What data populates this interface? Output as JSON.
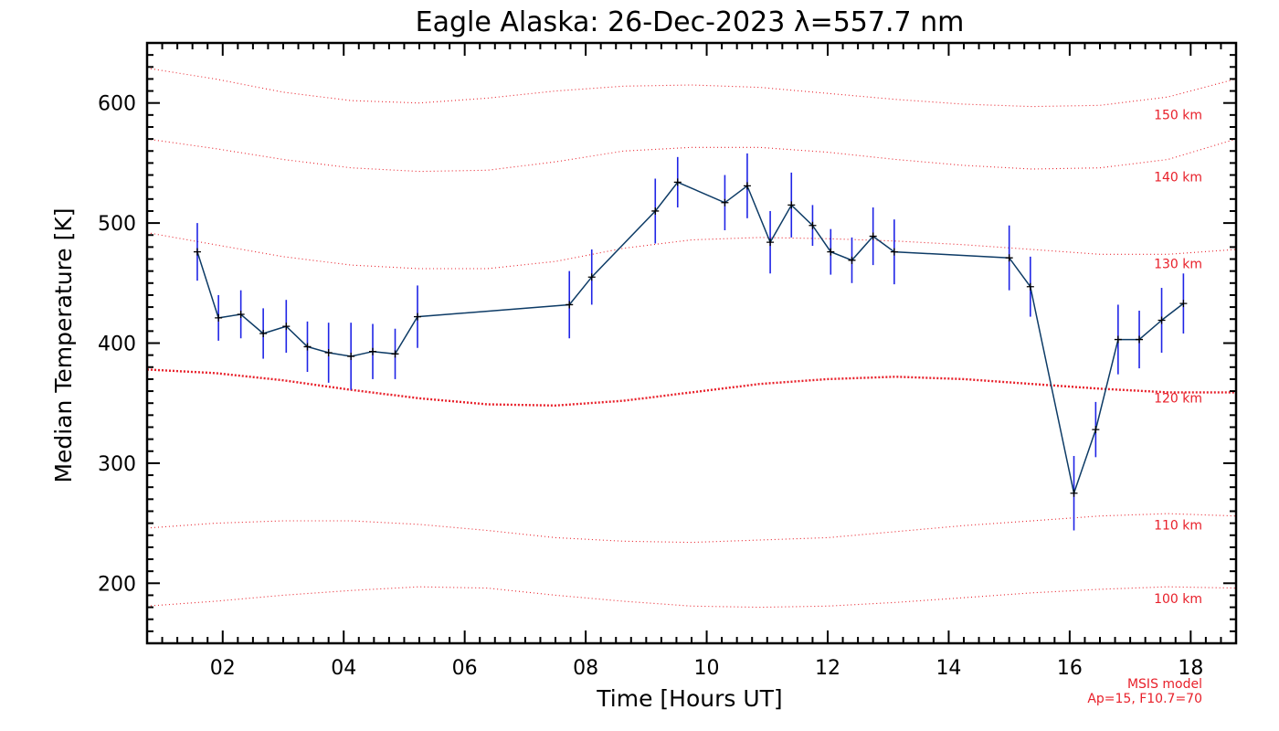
{
  "chart_data": {
    "type": "line",
    "title": "Eagle Alaska: 26-Dec-2023 λ=557.7 nm",
    "xlabel": "Time [Hours UT]",
    "ylabel": "Median Temperature [K]",
    "xlim": [
      0.75,
      18.75
    ],
    "ylim": [
      150,
      650
    ],
    "x_ticks": [
      2,
      4,
      6,
      8,
      10,
      12,
      14,
      16,
      18
    ],
    "x_tick_labels": [
      "02",
      "04",
      "06",
      "08",
      "10",
      "12",
      "14",
      "16",
      "18"
    ],
    "y_ticks": [
      200,
      300,
      400,
      500,
      600
    ],
    "y_tick_labels": [
      "200",
      "300",
      "400",
      "500",
      "600"
    ],
    "grid": false,
    "series": [
      {
        "color": "#0d3b66",
        "error_color": "#1f24e6",
        "x": [
          1.58,
          1.93,
          2.3,
          2.67,
          3.05,
          3.4,
          3.75,
          4.12,
          4.48,
          4.85,
          5.22,
          7.73,
          8.1,
          9.15,
          9.52,
          10.3,
          10.67,
          11.05,
          11.4,
          11.75,
          12.05,
          12.4,
          12.75,
          13.1,
          15.0,
          15.35,
          16.07,
          16.43,
          16.8,
          17.15,
          17.52,
          17.88
        ],
        "y": [
          476,
          421,
          424,
          408,
          414,
          397,
          392,
          389,
          393,
          391,
          422,
          432,
          455,
          510,
          534,
          517,
          531,
          484,
          515,
          498,
          476,
          469,
          489,
          476,
          471,
          447,
          275,
          328,
          403,
          403,
          419,
          433
        ],
        "error": [
          24,
          19,
          20,
          21,
          22,
          21,
          25,
          28,
          23,
          21,
          26,
          28,
          23,
          27,
          21,
          23,
          27,
          26,
          27,
          17,
          19,
          19,
          24,
          27,
          27,
          25,
          31,
          23,
          29,
          24,
          27,
          25
        ]
      }
    ],
    "model_lines": [
      {
        "label": "150 km",
        "y": [
          629,
          620,
          609,
          602,
          600,
          604,
          610,
          614,
          615,
          613,
          608,
          603,
          599,
          597,
          598,
          605,
          620
        ]
      },
      {
        "label": "140 km",
        "y": [
          570,
          562,
          553,
          546,
          543,
          544,
          551,
          560,
          563,
          563,
          559,
          553,
          548,
          545,
          546,
          553,
          570
        ]
      },
      {
        "label": "130 km",
        "y": [
          492,
          482,
          472,
          465,
          462,
          462,
          468,
          479,
          486,
          488,
          487,
          485,
          482,
          478,
          474,
          474,
          478
        ]
      },
      {
        "label": "120 km",
        "y": [
          378,
          375,
          369,
          361,
          354,
          349,
          348,
          352,
          359,
          366,
          370,
          372,
          370,
          366,
          362,
          359,
          359
        ]
      },
      {
        "label": "110 km",
        "y": [
          246,
          250,
          252,
          252,
          249,
          244,
          238,
          235,
          234,
          236,
          238,
          243,
          248,
          252,
          256,
          258,
          256
        ]
      },
      {
        "label": "100 km",
        "y": [
          181,
          185,
          190,
          194,
          197,
          196,
          190,
          185,
          181,
          180,
          181,
          184,
          188,
          192,
          195,
          197,
          196
        ]
      }
    ],
    "model_x": [
      0.75,
      1.875,
      3.0,
      4.125,
      5.25,
      6.375,
      7.5,
      8.625,
      9.75,
      10.875,
      12.0,
      13.125,
      14.25,
      15.375,
      16.5,
      17.625,
      18.75
    ],
    "model_color": "#e8202a",
    "note": [
      "MSIS model",
      "Ap=15, F10.7=70"
    ]
  }
}
